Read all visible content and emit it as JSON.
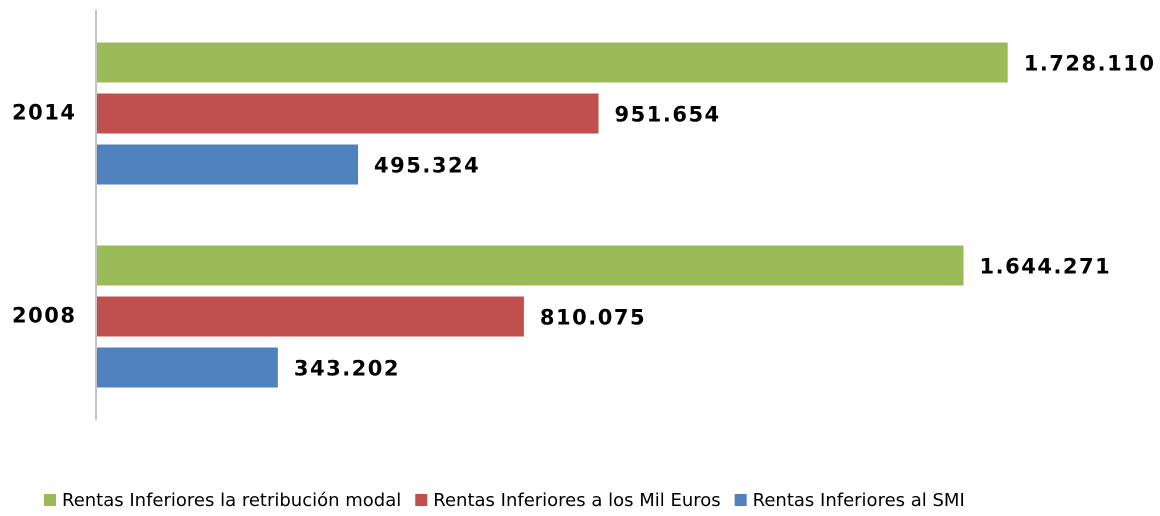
{
  "chart_data": {
    "type": "bar",
    "orientation": "horizontal",
    "categories": [
      "2014",
      "2008"
    ],
    "series": [
      {
        "name": "Rentas Inferiores la retribución modal",
        "color": "#9bbb59",
        "values": [
          1728110,
          1644271
        ],
        "value_labels": [
          "1.728.110",
          "1.644.271"
        ]
      },
      {
        "name": "Rentas Inferiores a los Mil Euros",
        "color": "#c0504d",
        "values": [
          951654,
          810075
        ],
        "value_labels": [
          "951.654",
          "810.075"
        ]
      },
      {
        "name": "Rentas Inferiores al SMI",
        "color": "#4f81bd",
        "values": [
          495324,
          343202
        ],
        "value_labels": [
          "495.324",
          "343.202"
        ]
      }
    ],
    "xlim": [
      0,
      2000000
    ],
    "legend": "bottom"
  }
}
